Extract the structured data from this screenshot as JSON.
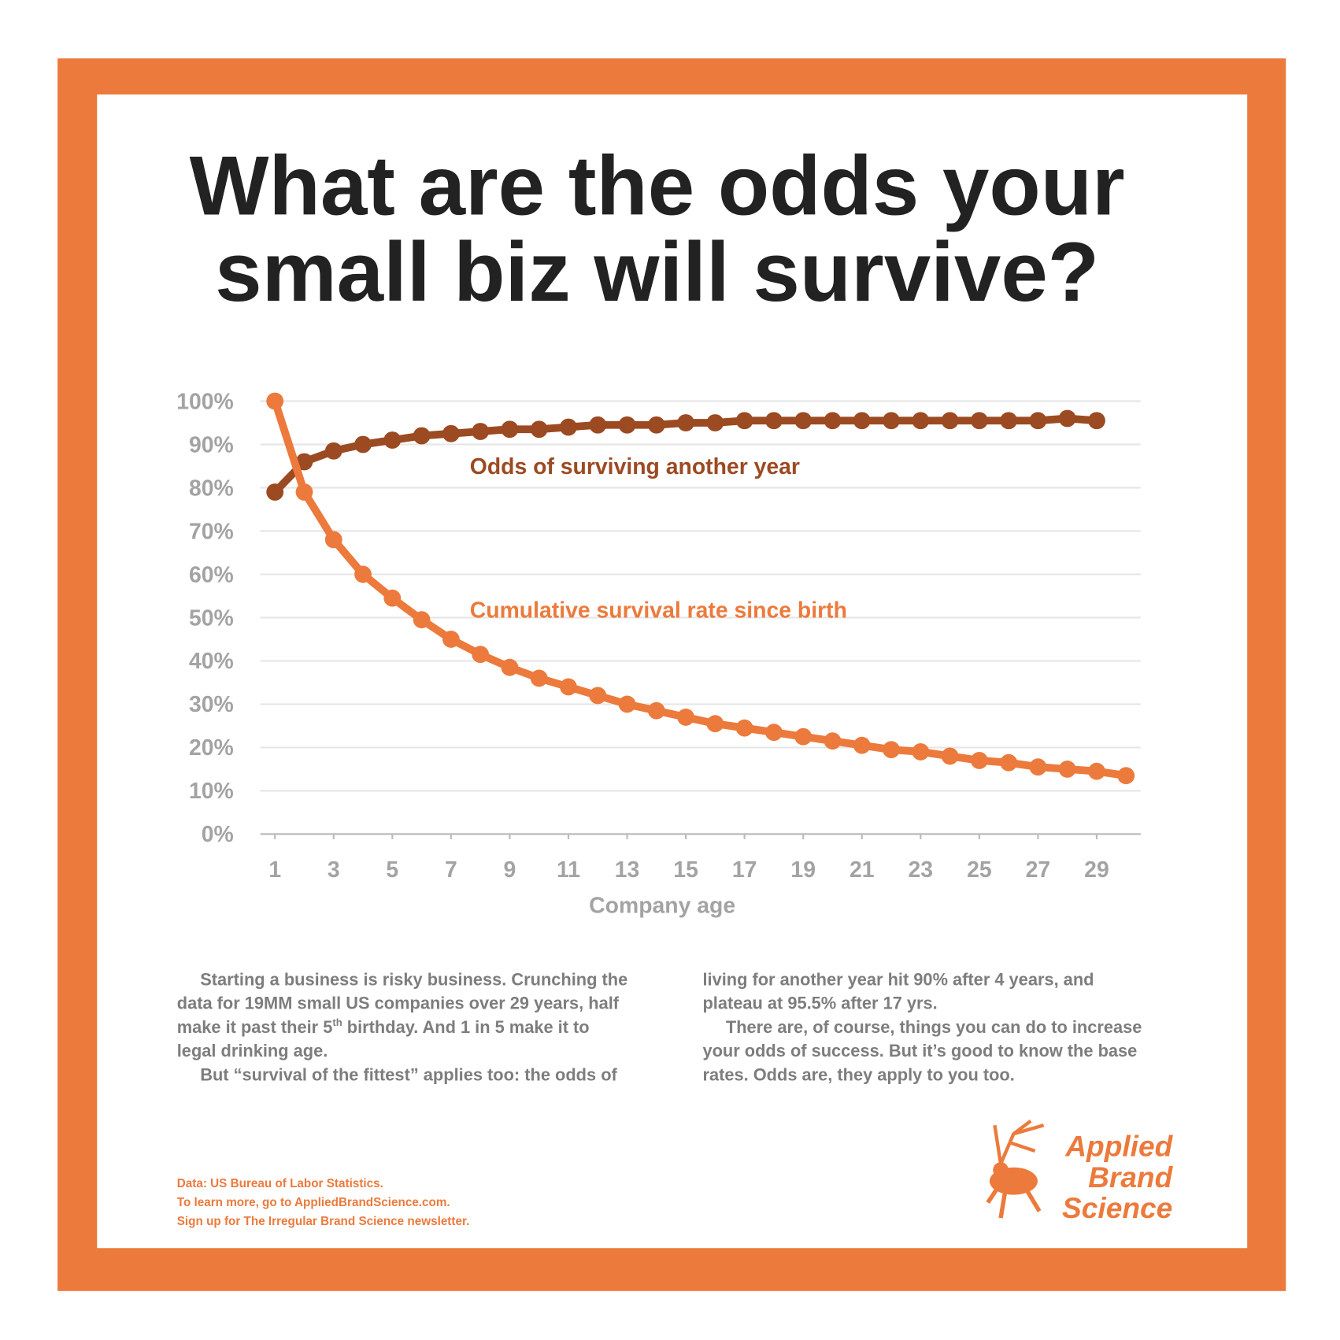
{
  "title": [
    "What are the odds your",
    "small biz will survive?"
  ],
  "chart_data": {
    "type": "line",
    "x": [
      1,
      2,
      3,
      4,
      5,
      6,
      7,
      8,
      9,
      10,
      11,
      12,
      13,
      14,
      15,
      16,
      17,
      18,
      19,
      20,
      21,
      22,
      23,
      24,
      25,
      26,
      27,
      28,
      29,
      30
    ],
    "series": [
      {
        "name": "Odds of surviving another year",
        "color": "#9b4a22",
        "values": [
          79,
          86,
          88.5,
          90,
          91,
          92,
          92.5,
          93,
          93.5,
          93.5,
          94,
          94.5,
          94.5,
          94.5,
          95,
          95,
          95.5,
          95.5,
          95.5,
          95.5,
          95.5,
          95.5,
          95.5,
          95.5,
          95.5,
          95.5,
          95.5,
          96,
          95.5,
          null
        ]
      },
      {
        "name": "Cumulative survival rate since birth",
        "color": "#ec7a3c",
        "values": [
          100,
          79,
          68,
          60,
          54.5,
          49.5,
          45,
          41.5,
          38.5,
          36,
          34,
          32,
          30,
          28.5,
          27,
          25.5,
          24.5,
          23.5,
          22.5,
          21.5,
          20.5,
          19.5,
          19,
          18,
          17,
          16.5,
          15.5,
          15,
          14.5,
          13.5
        ]
      }
    ],
    "xlabel": "Company age",
    "xlim": [
      0.5,
      30.5
    ],
    "xticks": [
      1,
      3,
      5,
      7,
      9,
      11,
      13,
      15,
      17,
      19,
      21,
      23,
      25,
      27,
      29
    ],
    "ylim": [
      0,
      100
    ],
    "yticks": [
      {
        "value": 0,
        "label": "0%"
      },
      {
        "value": 10,
        "label": "10%"
      },
      {
        "value": 20,
        "label": "20%"
      },
      {
        "value": 30,
        "label": "30%"
      },
      {
        "value": 40,
        "label": "40%"
      },
      {
        "value": 50,
        "label": "50%"
      },
      {
        "value": 60,
        "label": "60%"
      },
      {
        "value": 70,
        "label": "70%"
      },
      {
        "value": 80,
        "label": "80%"
      },
      {
        "value": 90,
        "label": "90%"
      },
      {
        "value": 100,
        "label": "100%"
      }
    ],
    "grid": true
  },
  "body": {
    "left": [
      [
        "Starting a business is risky business. Crunching the"
      ],
      [
        "data for 19MM small US companies over 29 years, half"
      ],
      [
        "make it past their 5",
        "th",
        " birthday. And 1 in 5 make it to"
      ],
      [
        "legal drinking age."
      ],
      [
        "But “survival of the fittest” applies too: the odds of"
      ]
    ],
    "right": [
      [
        "living for another year hit 90% after 4 years, and"
      ],
      [
        "plateau at 95.5% after 17 yrs."
      ],
      [
        "There are, of course, things you can do to increase"
      ],
      [
        "your odds of success. But it’s good to know the base"
      ],
      [
        "rates. Odds are, they apply to you too."
      ]
    ]
  },
  "footer": [
    "Data: US Bureau of Labor Statistics.",
    "To learn more, go to AppliedBrandScience.com.",
    "Sign up for The Irregular Brand Science newsletter."
  ],
  "logo": [
    "Applied",
    "Brand",
    "Science"
  ]
}
